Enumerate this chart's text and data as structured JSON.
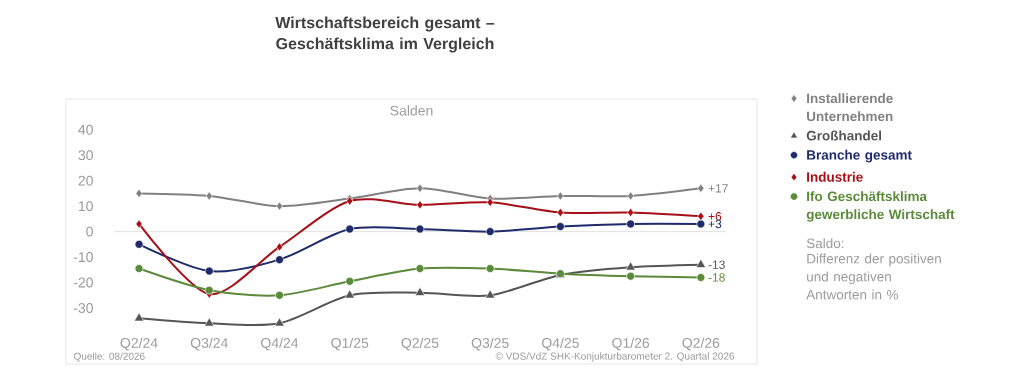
{
  "chart_data": {
    "type": "line",
    "title": "Wirtschaftsbereich gesamt – Geschäftsklima im Vergleich",
    "ylabel": "Salden",
    "categories": [
      "Q2/24",
      "Q3/24",
      "Q4/24",
      "Q1/25",
      "Q2/25",
      "Q3/25",
      "Q4/25",
      "Q1/26",
      "Q2/26"
    ],
    "series": [
      {
        "name": "Installierende Unternehmen",
        "color": "#808080",
        "marker": "diamond",
        "values": [
          15,
          14,
          10,
          13,
          17,
          13,
          14,
          14,
          17
        ],
        "value_labels": [
          null,
          null,
          null,
          null,
          null,
          null,
          null,
          null,
          "+17"
        ]
      },
      {
        "name": "Großhandel",
        "color": "#555555",
        "marker": "triangle",
        "values": [
          -34,
          -36,
          -36,
          -25,
          -24,
          -25,
          -17,
          -14,
          -13
        ],
        "value_labels": [
          null,
          null,
          null,
          null,
          null,
          null,
          null,
          null,
          "-13"
        ]
      },
      {
        "name": "Branche gesamt",
        "color": "#1f2a6b",
        "marker": "circle",
        "values": [
          -5,
          -15.5,
          -11,
          1,
          1,
          0,
          2,
          3,
          3
        ],
        "value_labels": [
          null,
          null,
          null,
          null,
          null,
          null,
          null,
          null,
          "+3"
        ]
      },
      {
        "name": "Industrie",
        "color": "#a50f15",
        "marker": "diamond",
        "values": [
          3,
          -24.5,
          -6,
          12,
          10.5,
          11.5,
          7.5,
          7.5,
          6
        ],
        "value_labels": [
          null,
          null,
          null,
          null,
          null,
          null,
          null,
          null,
          "+6"
        ]
      },
      {
        "name": "Ifo Geschäftsklima gewerbliche Wirtschaft",
        "color": "#5a8a3a",
        "marker": "circle",
        "values": [
          -14.5,
          -23,
          -25,
          -19.5,
          -14.5,
          -14.5,
          -16.5,
          -17.5,
          -18
        ],
        "value_labels": [
          null,
          null,
          null,
          null,
          null,
          null,
          null,
          null,
          "-18"
        ]
      }
    ],
    "ylim": [
      -52,
      52
    ],
    "yticks": [
      -30,
      -20,
      -10,
      0,
      10,
      20,
      30,
      40
    ],
    "ref_lines": [
      {
        "axis": "y",
        "value": 0,
        "color": "#d9d9d9"
      }
    ],
    "grid": false,
    "legend": "right",
    "line_style": "solid",
    "annotations": [
      "Saldo:",
      "Differenz der positiven und negativen Antworten in %",
      "Quelle: 08/2026",
      "© VDS/VdZ SHK-Konjukturbarometer 2. Quartal 2026"
    ]
  }
}
